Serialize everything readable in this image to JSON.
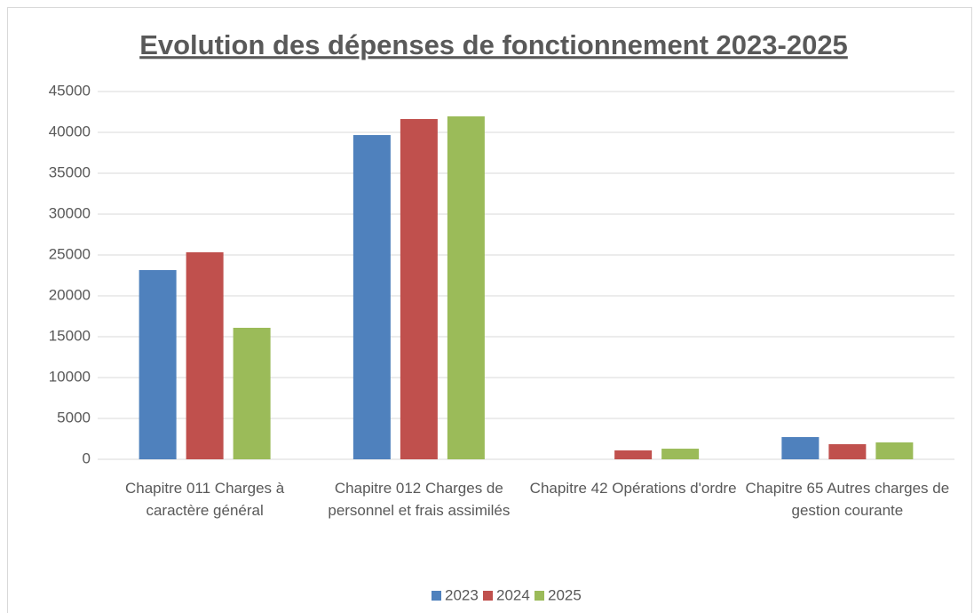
{
  "chart_data": {
    "type": "bar",
    "title": "Evolution des dépenses de fonctionnement 2023-2025",
    "categories": [
      "Chapitre 011 Charges à caractère général",
      "Chapitre 012 Charges de personnel et frais assimilés",
      "Chapitre 42 Opérations d'ordre",
      "Chapitre 65 Autres charges de gestion courante"
    ],
    "series": [
      {
        "name": "2023",
        "color": "#4f81bd",
        "values": [
          23150,
          39670,
          0,
          2720
        ]
      },
      {
        "name": "2024",
        "color": "#c0504d",
        "values": [
          25330,
          41630,
          1090,
          1850
        ]
      },
      {
        "name": "2025",
        "color": "#9bbb59",
        "values": [
          16090,
          41960,
          1300,
          2070
        ]
      }
    ],
    "ylim": [
      0,
      45000
    ],
    "yticks": [
      0,
      5000,
      10000,
      15000,
      20000,
      25000,
      30000,
      35000,
      40000,
      45000
    ],
    "grid": true,
    "legend": "bottom"
  }
}
